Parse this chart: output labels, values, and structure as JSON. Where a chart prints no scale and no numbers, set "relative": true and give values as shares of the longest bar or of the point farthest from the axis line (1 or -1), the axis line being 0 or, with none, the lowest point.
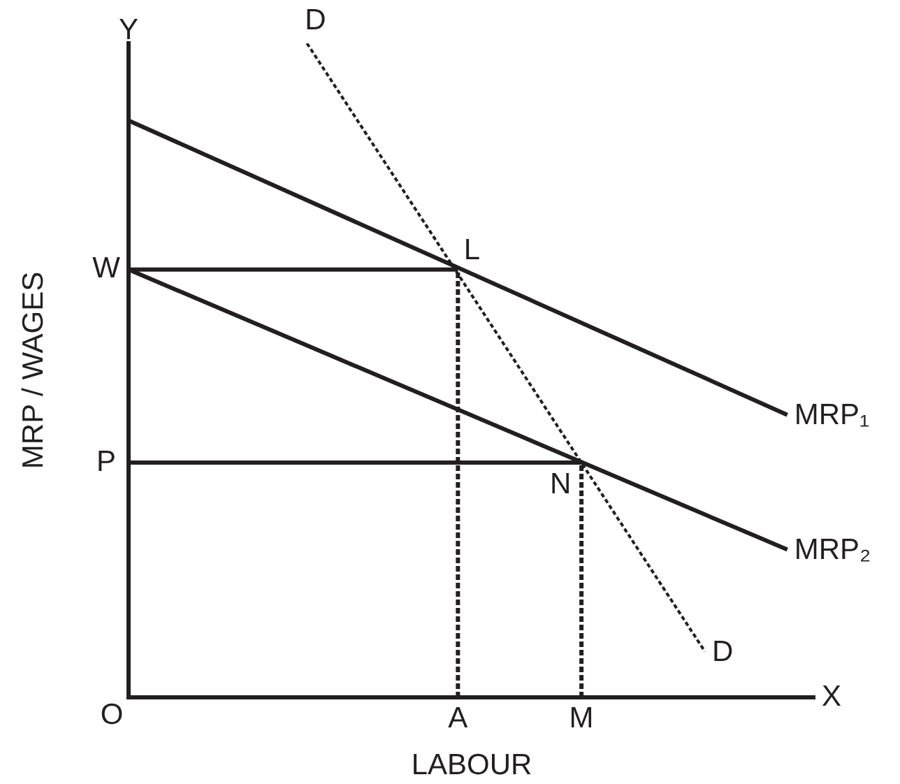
{
  "chart_data": {
    "type": "line",
    "relative": true,
    "xlabel": "LABOUR",
    "ylabel": "MRP / WAGES",
    "legend": false,
    "marker": "none",
    "categories": [
      null,
      null,
      null,
      null,
      null,
      null,
      null,
      null,
      null,
      null,
      null,
      null,
      null,
      null,
      null,
      null,
      null,
      null,
      null,
      null,
      null,
      null,
      null,
      null,
      "A",
      null,
      null,
      null,
      null,
      null,
      null,
      null,
      null,
      "M",
      null,
      null,
      null,
      null,
      null,
      null,
      null,
      null,
      null,
      null,
      null,
      null,
      null,
      null,
      null,
      null,
      null
    ],
    "series": [
      {
        "name": "MRP₁",
        "color": "#231f20",
        "values": [
          0.882,
          null,
          null,
          null,
          null,
          null,
          null,
          null,
          null,
          null,
          null,
          null,
          null,
          null,
          null,
          null,
          null,
          null,
          null,
          null,
          null,
          null,
          null,
          null,
          null,
          null,
          null,
          null,
          null,
          null,
          null,
          null,
          null,
          null,
          null,
          null,
          null,
          null,
          null,
          null,
          null,
          null,
          null,
          null,
          null,
          null,
          null,
          null,
          0.432,
          null,
          null
        ]
      },
      {
        "name": "MRP₂",
        "color": "#231f20",
        "values": [
          0.654,
          null,
          null,
          null,
          null,
          null,
          null,
          null,
          null,
          null,
          null,
          null,
          null,
          null,
          null,
          null,
          null,
          null,
          null,
          null,
          null,
          null,
          null,
          null,
          null,
          null,
          null,
          null,
          null,
          null,
          null,
          null,
          null,
          null,
          null,
          null,
          null,
          null,
          null,
          null,
          null,
          null,
          null,
          null,
          null,
          null,
          null,
          null,
          0.226,
          null,
          null
        ]
      },
      {
        "name": "D",
        "color": "#231f20",
        "line_style": "dotted",
        "values": [
          null,
          null,
          null,
          null,
          null,
          null,
          null,
          null,
          null,
          null,
          null,
          null,
          null,
          1,
          null,
          null,
          null,
          null,
          null,
          null,
          null,
          null,
          null,
          null,
          null,
          null,
          null,
          null,
          null,
          null,
          null,
          null,
          null,
          null,
          null,
          null,
          null,
          null,
          null,
          null,
          null,
          null,
          0.07,
          null,
          null,
          null,
          null,
          null,
          null,
          null,
          null
        ]
      },
      {
        "name": "W",
        "color": "#231f20",
        "values": [
          0.654,
          null,
          null,
          null,
          null,
          null,
          null,
          null,
          null,
          null,
          null,
          null,
          null,
          null,
          null,
          null,
          null,
          null,
          null,
          null,
          null,
          null,
          null,
          null,
          0.654,
          null,
          null,
          null,
          null,
          null,
          null,
          null,
          null,
          null,
          null,
          null,
          null,
          null,
          null,
          null,
          null,
          null,
          null,
          null,
          null,
          null,
          null,
          null,
          null,
          null,
          null
        ]
      },
      {
        "name": "P",
        "color": "#231f20",
        "values": [
          0.359,
          null,
          null,
          null,
          null,
          null,
          null,
          null,
          null,
          null,
          null,
          null,
          null,
          null,
          null,
          null,
          null,
          null,
          null,
          null,
          null,
          null,
          null,
          null,
          null,
          null,
          null,
          null,
          null,
          null,
          null,
          null,
          null,
          0.359,
          null,
          null,
          null,
          null,
          null,
          null,
          null,
          null,
          null,
          null,
          null,
          null,
          null,
          null,
          null,
          null,
          null
        ]
      },
      {
        "color": "#231f20",
        "line_style": "dashed",
        "x": [
          "A",
          "A"
        ],
        "values": [
          0,
          0.654
        ]
      },
      {
        "color": "#231f20",
        "line_style": "dashed",
        "x": [
          "M",
          "M"
        ],
        "values": [
          0,
          0.359
        ]
      }
    ],
    "annotations": [
      "Y",
      "X",
      "O",
      {
        "text": "L",
        "x": "A",
        "y": 0.654
      },
      {
        "text": "N",
        "x": "M",
        "y": 0.359
      }
    ]
  }
}
